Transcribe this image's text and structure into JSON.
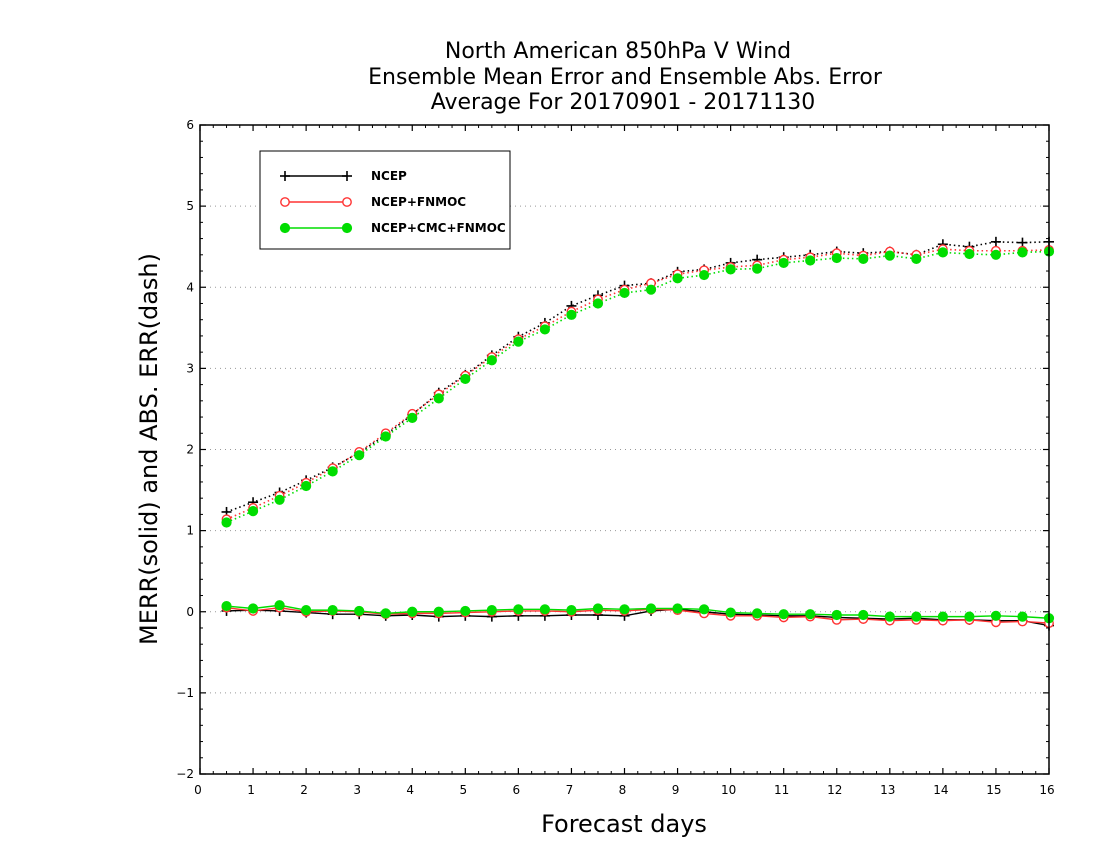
{
  "chart_data": {
    "type": "line",
    "title": [
      "North American 850hPa V Wind",
      "Ensemble Mean Error and Ensemble Abs. Error",
      "Average For 20170901 - 20171130"
    ],
    "xlabel": "Forecast days",
    "ylabel": "MERR(solid) and ABS. ERR(dash)",
    "xlim": [
      0,
      16
    ],
    "ylim": [
      -2,
      6
    ],
    "xticks": [
      0,
      1,
      2,
      3,
      4,
      5,
      6,
      7,
      8,
      9,
      10,
      11,
      12,
      13,
      14,
      15,
      16
    ],
    "yticks": [
      -2,
      -1,
      0,
      1,
      2,
      3,
      4,
      5,
      6
    ],
    "ytick_labels": [
      "−2",
      "−1",
      "0",
      "1",
      "2",
      "3",
      "4",
      "5",
      "6"
    ],
    "grid": "dotted horizontal",
    "legend_position": "top-left",
    "x": [
      0.5,
      1,
      1.5,
      2,
      2.5,
      3,
      3.5,
      4,
      4.5,
      5,
      5.5,
      6,
      6.5,
      7,
      7.5,
      8,
      8.5,
      9,
      9.5,
      10,
      10.5,
      11,
      11.5,
      12,
      12.5,
      13,
      13.5,
      14,
      14.5,
      15,
      15.5,
      16
    ],
    "series": [
      {
        "name": "NCEP",
        "color": "#000000",
        "marker": "plus",
        "abs_err": [
          1.23,
          1.35,
          1.47,
          1.62,
          1.78,
          1.96,
          2.18,
          2.43,
          2.7,
          2.92,
          3.16,
          3.39,
          3.56,
          3.77,
          3.9,
          4.02,
          4.05,
          4.19,
          4.22,
          4.3,
          4.34,
          4.37,
          4.4,
          4.44,
          4.42,
          4.44,
          4.4,
          4.53,
          4.5,
          4.56,
          4.55,
          4.56
        ],
        "mean_err": [
          0.01,
          0.02,
          0.01,
          -0.01,
          -0.03,
          -0.03,
          -0.05,
          -0.04,
          -0.06,
          -0.05,
          -0.06,
          -0.05,
          -0.05,
          -0.04,
          -0.04,
          -0.05,
          0.01,
          0.03,
          0.0,
          -0.03,
          -0.04,
          -0.05,
          -0.05,
          -0.07,
          -0.08,
          -0.09,
          -0.08,
          -0.1,
          -0.1,
          -0.11,
          -0.11,
          -0.17
        ]
      },
      {
        "name": "NCEP+FNMOC",
        "color": "#ff3333",
        "marker": "open-circle",
        "abs_err": [
          1.14,
          1.28,
          1.43,
          1.59,
          1.77,
          1.97,
          2.2,
          2.44,
          2.68,
          2.91,
          3.14,
          3.36,
          3.52,
          3.7,
          3.85,
          3.97,
          4.05,
          4.16,
          4.21,
          4.25,
          4.27,
          4.34,
          4.37,
          4.42,
          4.39,
          4.44,
          4.4,
          4.47,
          4.45,
          4.45,
          4.45,
          4.46
        ],
        "mean_err": [
          0.05,
          0.01,
          0.05,
          0.0,
          0.01,
          0.0,
          -0.03,
          -0.02,
          -0.02,
          -0.01,
          0.0,
          0.01,
          0.01,
          0.0,
          0.02,
          0.01,
          0.03,
          0.02,
          -0.02,
          -0.05,
          -0.05,
          -0.07,
          -0.06,
          -0.1,
          -0.09,
          -0.11,
          -0.1,
          -0.11,
          -0.1,
          -0.13,
          -0.12,
          -0.14
        ]
      },
      {
        "name": "NCEP+CMC+FNMOC",
        "color": "#00dd00",
        "marker": "filled-circle",
        "abs_err": [
          1.1,
          1.24,
          1.38,
          1.55,
          1.73,
          1.93,
          2.16,
          2.39,
          2.63,
          2.87,
          3.1,
          3.33,
          3.48,
          3.66,
          3.8,
          3.93,
          3.97,
          4.11,
          4.15,
          4.22,
          4.23,
          4.3,
          4.33,
          4.36,
          4.35,
          4.39,
          4.35,
          4.43,
          4.41,
          4.4,
          4.43,
          4.44
        ],
        "mean_err": [
          0.07,
          0.04,
          0.08,
          0.02,
          0.02,
          0.01,
          -0.02,
          0.0,
          0.0,
          0.01,
          0.02,
          0.03,
          0.03,
          0.02,
          0.04,
          0.03,
          0.04,
          0.04,
          0.03,
          -0.01,
          -0.02,
          -0.03,
          -0.03,
          -0.04,
          -0.04,
          -0.06,
          -0.06,
          -0.06,
          -0.06,
          -0.05,
          -0.06,
          -0.08
        ]
      }
    ]
  }
}
